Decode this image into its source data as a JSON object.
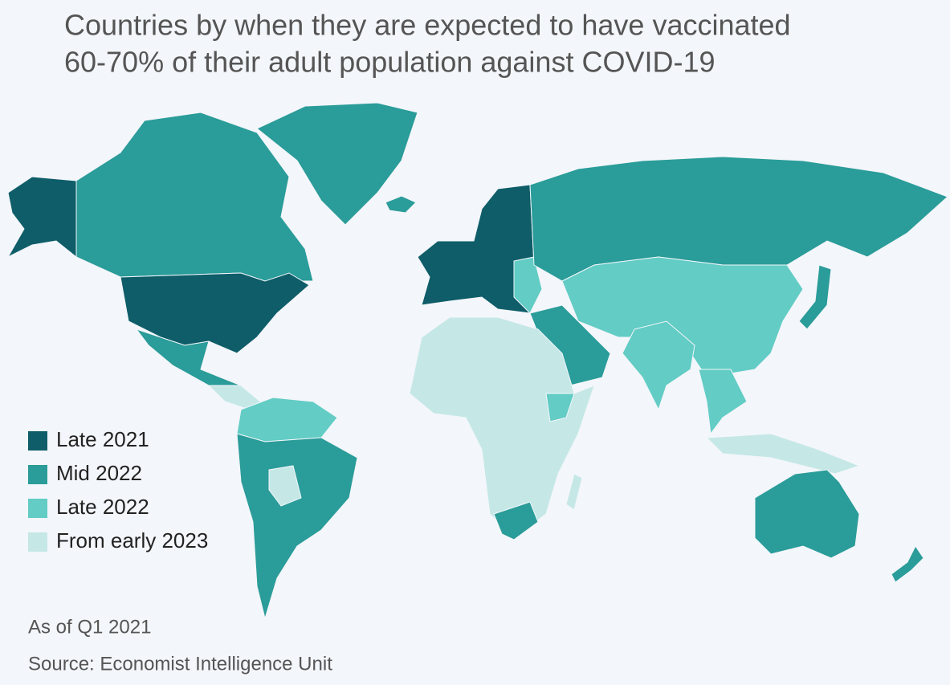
{
  "title": [
    "Countries by when they are expected to have vaccinated",
    "60-70% of their adult population against COVID-19"
  ],
  "legend": [
    {
      "label": "Late 2021",
      "color": "#0e5d69"
    },
    {
      "label": "Mid 2022",
      "color": "#2a9c99"
    },
    {
      "label": "Late 2022",
      "color": "#62ccc5"
    },
    {
      "label": "From early 2023",
      "color": "#c5e8e7"
    }
  ],
  "notes": [
    "As of Q1 2021",
    "Source: Economist Intelligence Unit"
  ]
}
